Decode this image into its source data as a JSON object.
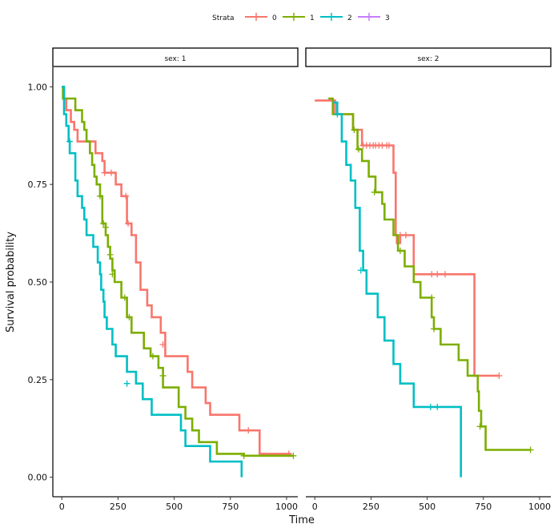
{
  "chart_data": {
    "type": "line",
    "subtype": "kaplan-meier step plot, faceted",
    "xlabel": "Time",
    "ylabel": "Survival probability",
    "xlim": [
      -40,
      1050
    ],
    "ylim": [
      -0.05,
      1.05
    ],
    "xticks": [
      0,
      250,
      500,
      750,
      1000
    ],
    "yticks": [
      0,
      0.25,
      0.5,
      0.75,
      1.0
    ],
    "xtick_labels": [
      "0",
      "250",
      "500",
      "750",
      "1000"
    ],
    "ytick_labels": [
      "0.00",
      "0.25",
      "0.50",
      "0.75",
      "1.00"
    ],
    "grid": false,
    "legend": {
      "title": "Strata",
      "placement": "top",
      "entries": [
        {
          "label": "0",
          "color": "#F8766D"
        },
        {
          "label": "1",
          "color": "#7CAE00"
        },
        {
          "label": "2",
          "color": "#00BFC4"
        },
        {
          "label": "3",
          "color": "#C77CFF"
        }
      ]
    },
    "panels": [
      {
        "strip": "sex: 1",
        "series": [
          {
            "name": "0",
            "color": "#F8766D",
            "points": [
              [
                0,
                1.0
              ],
              [
                10,
                0.97
              ],
              [
                20,
                0.94
              ],
              [
                40,
                0.91
              ],
              [
                55,
                0.89
              ],
              [
                70,
                0.86
              ],
              [
                150,
                0.83
              ],
              [
                180,
                0.81
              ],
              [
                190,
                0.78
              ],
              [
                240,
                0.75
              ],
              [
                265,
                0.72
              ],
              [
                290,
                0.65
              ],
              [
                310,
                0.62
              ],
              [
                330,
                0.55
              ],
              [
                350,
                0.48
              ],
              [
                380,
                0.44
              ],
              [
                400,
                0.41
              ],
              [
                440,
                0.37
              ],
              [
                460,
                0.31
              ],
              [
                560,
                0.27
              ],
              [
                580,
                0.23
              ],
              [
                640,
                0.19
              ],
              [
                660,
                0.16
              ],
              [
                790,
                0.12
              ],
              [
                880,
                0.06
              ],
              [
                1020,
                0.06
              ]
            ],
            "censored": [
              [
                190,
                0.78
              ],
              [
                220,
                0.78
              ],
              [
                285,
                0.72
              ],
              [
                295,
                0.65
              ],
              [
                450,
                0.34
              ],
              [
                830,
                0.12
              ],
              [
                1010,
                0.06
              ]
            ]
          },
          {
            "name": "1",
            "color": "#7CAE00",
            "points": [
              [
                0,
                1.0
              ],
              [
                5,
                0.97
              ],
              [
                60,
                0.94
              ],
              [
                90,
                0.91
              ],
              [
                100,
                0.89
              ],
              [
                110,
                0.86
              ],
              [
                125,
                0.83
              ],
              [
                135,
                0.8
              ],
              [
                145,
                0.77
              ],
              [
                155,
                0.75
              ],
              [
                170,
                0.72
              ],
              [
                180,
                0.65
              ],
              [
                195,
                0.62
              ],
              [
                205,
                0.59
              ],
              [
                215,
                0.56
              ],
              [
                225,
                0.53
              ],
              [
                235,
                0.5
              ],
              [
                265,
                0.46
              ],
              [
                290,
                0.41
              ],
              [
                310,
                0.37
              ],
              [
                365,
                0.33
              ],
              [
                395,
                0.31
              ],
              [
                430,
                0.28
              ],
              [
                450,
                0.23
              ],
              [
                520,
                0.18
              ],
              [
                550,
                0.15
              ],
              [
                580,
                0.12
              ],
              [
                610,
                0.09
              ],
              [
                690,
                0.06
              ],
              [
                810,
                0.055
              ],
              [
                1030,
                0.055
              ]
            ],
            "censored": [
              [
                170,
                0.72
              ],
              [
                185,
                0.65
              ],
              [
                195,
                0.64
              ],
              [
                215,
                0.57
              ],
              [
                225,
                0.52
              ],
              [
                280,
                0.46
              ],
              [
                300,
                0.41
              ],
              [
                405,
                0.31
              ],
              [
                450,
                0.26
              ],
              [
                810,
                0.055
              ],
              [
                1030,
                0.055
              ]
            ]
          },
          {
            "name": "2",
            "color": "#00BFC4",
            "points": [
              [
                0,
                1.0
              ],
              [
                10,
                0.93
              ],
              [
                20,
                0.9
              ],
              [
                30,
                0.86
              ],
              [
                35,
                0.83
              ],
              [
                60,
                0.76
              ],
              [
                70,
                0.72
              ],
              [
                90,
                0.69
              ],
              [
                100,
                0.66
              ],
              [
                110,
                0.62
              ],
              [
                140,
                0.59
              ],
              [
                160,
                0.55
              ],
              [
                170,
                0.52
              ],
              [
                175,
                0.48
              ],
              [
                185,
                0.45
              ],
              [
                190,
                0.41
              ],
              [
                200,
                0.38
              ],
              [
                225,
                0.34
              ],
              [
                240,
                0.31
              ],
              [
                290,
                0.27
              ],
              [
                330,
                0.24
              ],
              [
                360,
                0.2
              ],
              [
                400,
                0.16
              ],
              [
                530,
                0.12
              ],
              [
                550,
                0.08
              ],
              [
                660,
                0.04
              ],
              [
                800,
                0.04
              ],
              [
                800,
                0.0
              ]
            ],
            "censored": [
              [
                35,
                0.86
              ],
              [
                290,
                0.24
              ]
            ]
          }
        ]
      },
      {
        "strip": "sex: 2",
        "series": [
          {
            "name": "0",
            "color": "#F8766D",
            "points": [
              [
                0,
                0.965
              ],
              [
                70,
                0.965
              ],
              [
                90,
                0.93
              ],
              [
                150,
                0.93
              ],
              [
                170,
                0.89
              ],
              [
                200,
                0.89
              ],
              [
                210,
                0.85
              ],
              [
                340,
                0.85
              ],
              [
                350,
                0.78
              ],
              [
                360,
                0.62
              ],
              [
                365,
                0.6
              ],
              [
                380,
                0.6
              ],
              [
                380,
                0.62
              ],
              [
                430,
                0.62
              ],
              [
                440,
                0.52
              ],
              [
                700,
                0.52
              ],
              [
                710,
                0.26
              ],
              [
                820,
                0.26
              ]
            ],
            "censored": [
              [
                215,
                0.85
              ],
              [
                230,
                0.85
              ],
              [
                245,
                0.85
              ],
              [
                260,
                0.85
              ],
              [
                270,
                0.85
              ],
              [
                285,
                0.85
              ],
              [
                300,
                0.85
              ],
              [
                320,
                0.85
              ],
              [
                330,
                0.85
              ],
              [
                380,
                0.62
              ],
              [
                405,
                0.62
              ],
              [
                520,
                0.52
              ],
              [
                545,
                0.52
              ],
              [
                580,
                0.52
              ],
              [
                820,
                0.26
              ]
            ]
          },
          {
            "name": "1",
            "color": "#7CAE00",
            "points": [
              [
                60,
                0.97
              ],
              [
                80,
                0.93
              ],
              [
                150,
                0.93
              ],
              [
                170,
                0.89
              ],
              [
                190,
                0.84
              ],
              [
                210,
                0.81
              ],
              [
                240,
                0.77
              ],
              [
                270,
                0.73
              ],
              [
                300,
                0.7
              ],
              [
                310,
                0.66
              ],
              [
                350,
                0.62
              ],
              [
                370,
                0.58
              ],
              [
                400,
                0.54
              ],
              [
                440,
                0.5
              ],
              [
                470,
                0.46
              ],
              [
                520,
                0.41
              ],
              [
                530,
                0.38
              ],
              [
                560,
                0.34
              ],
              [
                640,
                0.3
              ],
              [
                680,
                0.26
              ],
              [
                725,
                0.22
              ],
              [
                730,
                0.17
              ],
              [
                740,
                0.13
              ],
              [
                760,
                0.07
              ],
              [
                960,
                0.07
              ]
            ],
            "censored": [
              [
                175,
                0.89
              ],
              [
                195,
                0.84
              ],
              [
                265,
                0.73
              ],
              [
                380,
                0.58
              ],
              [
                520,
                0.46
              ],
              [
                530,
                0.38
              ],
              [
                735,
                0.13
              ],
              [
                960,
                0.07
              ]
            ]
          },
          {
            "name": "2",
            "color": "#00BFC4",
            "points": [
              [
                80,
                0.96
              ],
              [
                100,
                0.93
              ],
              [
                120,
                0.86
              ],
              [
                140,
                0.8
              ],
              [
                160,
                0.76
              ],
              [
                180,
                0.69
              ],
              [
                200,
                0.58
              ],
              [
                215,
                0.53
              ],
              [
                230,
                0.47
              ],
              [
                280,
                0.41
              ],
              [
                310,
                0.35
              ],
              [
                350,
                0.29
              ],
              [
                380,
                0.24
              ],
              [
                440,
                0.18
              ],
              [
                650,
                0.18
              ],
              [
                650,
                0.0
              ]
            ],
            "censored": [
              [
                100,
                0.93
              ],
              [
                205,
                0.53
              ],
              [
                515,
                0.18
              ],
              [
                545,
                0.18
              ]
            ]
          }
        ]
      }
    ]
  }
}
